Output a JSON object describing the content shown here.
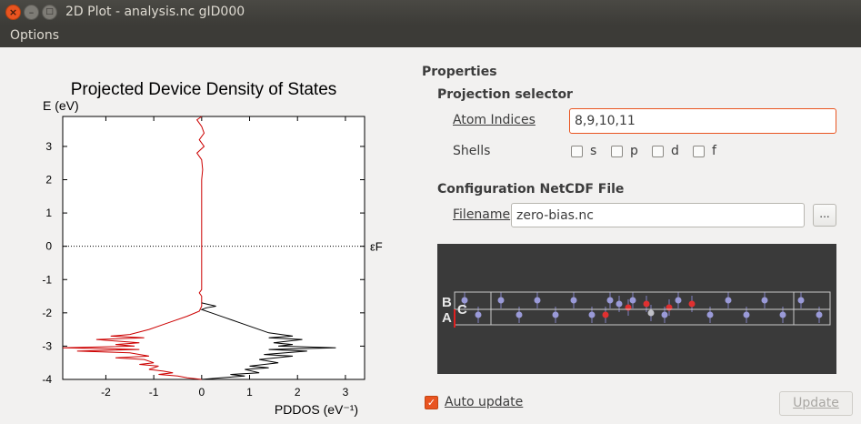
{
  "window": {
    "title": "2D Plot - analysis.nc gID000",
    "close_glyph": "×",
    "minimize_glyph": "–",
    "maximize_glyph": "□"
  },
  "menu": {
    "options_label": "Options"
  },
  "chart_data": {
    "type": "line",
    "title": "Projected Device Density of States",
    "ylabel": "E (eV)",
    "xlabel": "PDDOS (eV⁻¹)",
    "xlim": [
      -2.9,
      3.4
    ],
    "ylim": [
      -4,
      3.9
    ],
    "xticks": [
      -2,
      -1,
      0,
      1,
      2,
      3
    ],
    "yticks": [
      3,
      2,
      1,
      0,
      -1,
      -2,
      -3,
      -4
    ],
    "fermi_level": {
      "energy": 0,
      "label": "εF"
    },
    "series": [
      {
        "color": "#cc0000",
        "points": [
          [
            0,
            3.9
          ],
          [
            -0.1,
            3.8
          ],
          [
            0,
            3.6
          ],
          [
            0.05,
            3.4
          ],
          [
            -0.05,
            3.2
          ],
          [
            0.05,
            3.0
          ],
          [
            -0.1,
            2.8
          ],
          [
            0,
            2.6
          ],
          [
            0.02,
            2.3
          ],
          [
            0,
            2.0
          ],
          [
            0,
            1.5
          ],
          [
            0,
            1.0
          ],
          [
            0,
            0.5
          ],
          [
            0,
            0
          ],
          [
            0,
            -0.5
          ],
          [
            0,
            -1.0
          ],
          [
            0,
            -1.3
          ],
          [
            -0.05,
            -1.4
          ],
          [
            0,
            -1.5
          ],
          [
            0,
            -1.8
          ],
          [
            -0.05,
            -1.95
          ],
          [
            -0.3,
            -2.1
          ],
          [
            -0.7,
            -2.3
          ],
          [
            -1.1,
            -2.5
          ],
          [
            -1.5,
            -2.65
          ],
          [
            -1.9,
            -2.7
          ],
          [
            -1.2,
            -2.75
          ],
          [
            -2.2,
            -2.8
          ],
          [
            -1.3,
            -2.9
          ],
          [
            -1.8,
            -2.95
          ],
          [
            -1.4,
            -3.0
          ],
          [
            -2.9,
            -3.05
          ],
          [
            -1.3,
            -3.1
          ],
          [
            -2.6,
            -3.15
          ],
          [
            -1.5,
            -3.2
          ],
          [
            -1.1,
            -3.3
          ],
          [
            -1.8,
            -3.35
          ],
          [
            -1.2,
            -3.4
          ],
          [
            -1.0,
            -3.5
          ],
          [
            -1.3,
            -3.55
          ],
          [
            -0.9,
            -3.6
          ],
          [
            -1.1,
            -3.7
          ],
          [
            -0.8,
            -3.75
          ],
          [
            -0.6,
            -3.8
          ],
          [
            -0.9,
            -3.85
          ],
          [
            -0.5,
            -3.9
          ],
          [
            -0.3,
            -3.95
          ],
          [
            0,
            -4.0
          ]
        ]
      },
      {
        "color": "#000000",
        "points": [
          [
            0,
            -1.7
          ],
          [
            0.3,
            -1.8
          ],
          [
            0.1,
            -1.85
          ],
          [
            0,
            -1.9
          ],
          [
            0.2,
            -2.0
          ],
          [
            0.5,
            -2.15
          ],
          [
            0.8,
            -2.3
          ],
          [
            1.1,
            -2.45
          ],
          [
            1.4,
            -2.6
          ],
          [
            1.9,
            -2.7
          ],
          [
            1.4,
            -2.75
          ],
          [
            2.1,
            -2.8
          ],
          [
            1.5,
            -2.9
          ],
          [
            1.9,
            -2.95
          ],
          [
            1.6,
            -3.0
          ],
          [
            2.8,
            -3.05
          ],
          [
            1.4,
            -3.1
          ],
          [
            2.2,
            -3.15
          ],
          [
            1.3,
            -3.25
          ],
          [
            1.9,
            -3.3
          ],
          [
            1.2,
            -3.4
          ],
          [
            1.6,
            -3.5
          ],
          [
            1.0,
            -3.6
          ],
          [
            1.4,
            -3.65
          ],
          [
            0.9,
            -3.7
          ],
          [
            1.2,
            -3.8
          ],
          [
            0.6,
            -3.85
          ],
          [
            0.9,
            -3.9
          ],
          [
            0.4,
            -3.95
          ],
          [
            0,
            -4.0
          ]
        ]
      }
    ]
  },
  "properties": {
    "heading": "Properties",
    "projection": {
      "heading": "Projection selector",
      "atom_indices_label": "Atom Indices",
      "atom_indices_value": "8,9,10,11",
      "shells_label": "Shells",
      "shells": [
        {
          "label": "s",
          "checked": false
        },
        {
          "label": "p",
          "checked": false
        },
        {
          "label": "d",
          "checked": false
        },
        {
          "label": "f",
          "checked": false
        }
      ]
    },
    "config": {
      "heading": "Configuration NetCDF File",
      "filename_label": "Filename",
      "filename_value": "zero-bias.nc",
      "browse_label": "..."
    },
    "viewer": {
      "background": "#3a3a3a",
      "axis_labels": [
        "B",
        "C",
        "A"
      ]
    }
  },
  "footer": {
    "auto_update_label": "Auto update",
    "auto_update_checked": true,
    "update_label": "Update"
  }
}
